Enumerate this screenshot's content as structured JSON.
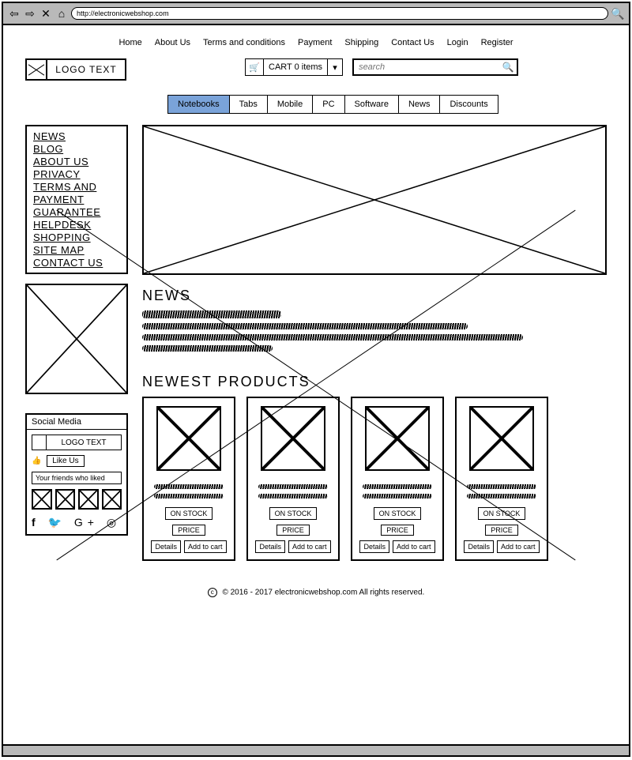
{
  "browser": {
    "url": "http://electronicwebshop.com"
  },
  "topnav": [
    "Home",
    "About Us",
    "Terms and conditions",
    "Payment",
    "Shipping",
    "Contact Us",
    "Login",
    "Register"
  ],
  "logo_text": "LOGO TEXT",
  "cart_label": "CART 0 items",
  "search_placeholder": "search",
  "categories": [
    {
      "label": "Notebooks",
      "active": true
    },
    {
      "label": "Tabs",
      "active": false
    },
    {
      "label": "Mobile",
      "active": false
    },
    {
      "label": "PC",
      "active": false
    },
    {
      "label": "Software",
      "active": false
    },
    {
      "label": "News",
      "active": false
    },
    {
      "label": "Discounts",
      "active": false
    }
  ],
  "side_links": [
    "NEWS",
    "BLOG",
    "ABOUT US",
    "PRIVACY",
    "TERMS AND",
    "PAYMENT",
    "GUARANTEE",
    "HELPDESK",
    "SHOPPING",
    "SITE MAP",
    "CONTACT US"
  ],
  "social": {
    "header": "Social Media",
    "logo_text": "LOGO TEXT",
    "like": "Like Us",
    "friends": "Your friends who liked"
  },
  "news_title": "NEWS",
  "products_title": "NEWEST PRODUCTS",
  "product_labels": {
    "stock": "ON STOCK",
    "price": "PRICE",
    "details": "Details",
    "add": "Add to cart"
  },
  "product_count": 4,
  "footer": "© 2016 - 2017 electronicwebshop.com All rights reserved.",
  "colors": {
    "tab_active": "#7aa3d9",
    "chrome": "#b9b9b9"
  }
}
